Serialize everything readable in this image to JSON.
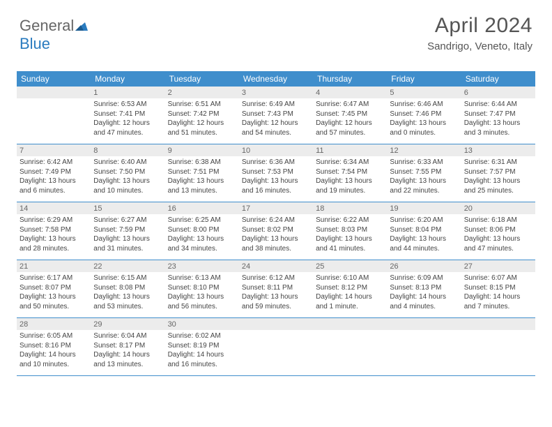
{
  "logo": {
    "part1": "General",
    "part2": "Blue"
  },
  "header": {
    "title": "April 2024",
    "location": "Sandrigo, Veneto, Italy"
  },
  "colors": {
    "header_blue": "#3f8ecc",
    "logo_blue": "#2a7bbf",
    "daynum_bg": "#ececec",
    "text": "#444444",
    "rule": "#3f8ecc"
  },
  "day_labels": [
    "Sunday",
    "Monday",
    "Tuesday",
    "Wednesday",
    "Thursday",
    "Friday",
    "Saturday"
  ],
  "weeks": [
    [
      null,
      {
        "n": "1",
        "sr": "Sunrise: 6:53 AM",
        "ss": "Sunset: 7:41 PM",
        "d1": "Daylight: 12 hours",
        "d2": "and 47 minutes."
      },
      {
        "n": "2",
        "sr": "Sunrise: 6:51 AM",
        "ss": "Sunset: 7:42 PM",
        "d1": "Daylight: 12 hours",
        "d2": "and 51 minutes."
      },
      {
        "n": "3",
        "sr": "Sunrise: 6:49 AM",
        "ss": "Sunset: 7:43 PM",
        "d1": "Daylight: 12 hours",
        "d2": "and 54 minutes."
      },
      {
        "n": "4",
        "sr": "Sunrise: 6:47 AM",
        "ss": "Sunset: 7:45 PM",
        "d1": "Daylight: 12 hours",
        "d2": "and 57 minutes."
      },
      {
        "n": "5",
        "sr": "Sunrise: 6:46 AM",
        "ss": "Sunset: 7:46 PM",
        "d1": "Daylight: 13 hours",
        "d2": "and 0 minutes."
      },
      {
        "n": "6",
        "sr": "Sunrise: 6:44 AM",
        "ss": "Sunset: 7:47 PM",
        "d1": "Daylight: 13 hours",
        "d2": "and 3 minutes."
      }
    ],
    [
      {
        "n": "7",
        "sr": "Sunrise: 6:42 AM",
        "ss": "Sunset: 7:49 PM",
        "d1": "Daylight: 13 hours",
        "d2": "and 6 minutes."
      },
      {
        "n": "8",
        "sr": "Sunrise: 6:40 AM",
        "ss": "Sunset: 7:50 PM",
        "d1": "Daylight: 13 hours",
        "d2": "and 10 minutes."
      },
      {
        "n": "9",
        "sr": "Sunrise: 6:38 AM",
        "ss": "Sunset: 7:51 PM",
        "d1": "Daylight: 13 hours",
        "d2": "and 13 minutes."
      },
      {
        "n": "10",
        "sr": "Sunrise: 6:36 AM",
        "ss": "Sunset: 7:53 PM",
        "d1": "Daylight: 13 hours",
        "d2": "and 16 minutes."
      },
      {
        "n": "11",
        "sr": "Sunrise: 6:34 AM",
        "ss": "Sunset: 7:54 PM",
        "d1": "Daylight: 13 hours",
        "d2": "and 19 minutes."
      },
      {
        "n": "12",
        "sr": "Sunrise: 6:33 AM",
        "ss": "Sunset: 7:55 PM",
        "d1": "Daylight: 13 hours",
        "d2": "and 22 minutes."
      },
      {
        "n": "13",
        "sr": "Sunrise: 6:31 AM",
        "ss": "Sunset: 7:57 PM",
        "d1": "Daylight: 13 hours",
        "d2": "and 25 minutes."
      }
    ],
    [
      {
        "n": "14",
        "sr": "Sunrise: 6:29 AM",
        "ss": "Sunset: 7:58 PM",
        "d1": "Daylight: 13 hours",
        "d2": "and 28 minutes."
      },
      {
        "n": "15",
        "sr": "Sunrise: 6:27 AM",
        "ss": "Sunset: 7:59 PM",
        "d1": "Daylight: 13 hours",
        "d2": "and 31 minutes."
      },
      {
        "n": "16",
        "sr": "Sunrise: 6:25 AM",
        "ss": "Sunset: 8:00 PM",
        "d1": "Daylight: 13 hours",
        "d2": "and 34 minutes."
      },
      {
        "n": "17",
        "sr": "Sunrise: 6:24 AM",
        "ss": "Sunset: 8:02 PM",
        "d1": "Daylight: 13 hours",
        "d2": "and 38 minutes."
      },
      {
        "n": "18",
        "sr": "Sunrise: 6:22 AM",
        "ss": "Sunset: 8:03 PM",
        "d1": "Daylight: 13 hours",
        "d2": "and 41 minutes."
      },
      {
        "n": "19",
        "sr": "Sunrise: 6:20 AM",
        "ss": "Sunset: 8:04 PM",
        "d1": "Daylight: 13 hours",
        "d2": "and 44 minutes."
      },
      {
        "n": "20",
        "sr": "Sunrise: 6:18 AM",
        "ss": "Sunset: 8:06 PM",
        "d1": "Daylight: 13 hours",
        "d2": "and 47 minutes."
      }
    ],
    [
      {
        "n": "21",
        "sr": "Sunrise: 6:17 AM",
        "ss": "Sunset: 8:07 PM",
        "d1": "Daylight: 13 hours",
        "d2": "and 50 minutes."
      },
      {
        "n": "22",
        "sr": "Sunrise: 6:15 AM",
        "ss": "Sunset: 8:08 PM",
        "d1": "Daylight: 13 hours",
        "d2": "and 53 minutes."
      },
      {
        "n": "23",
        "sr": "Sunrise: 6:13 AM",
        "ss": "Sunset: 8:10 PM",
        "d1": "Daylight: 13 hours",
        "d2": "and 56 minutes."
      },
      {
        "n": "24",
        "sr": "Sunrise: 6:12 AM",
        "ss": "Sunset: 8:11 PM",
        "d1": "Daylight: 13 hours",
        "d2": "and 59 minutes."
      },
      {
        "n": "25",
        "sr": "Sunrise: 6:10 AM",
        "ss": "Sunset: 8:12 PM",
        "d1": "Daylight: 14 hours",
        "d2": "and 1 minute."
      },
      {
        "n": "26",
        "sr": "Sunrise: 6:09 AM",
        "ss": "Sunset: 8:13 PM",
        "d1": "Daylight: 14 hours",
        "d2": "and 4 minutes."
      },
      {
        "n": "27",
        "sr": "Sunrise: 6:07 AM",
        "ss": "Sunset: 8:15 PM",
        "d1": "Daylight: 14 hours",
        "d2": "and 7 minutes."
      }
    ],
    [
      {
        "n": "28",
        "sr": "Sunrise: 6:05 AM",
        "ss": "Sunset: 8:16 PM",
        "d1": "Daylight: 14 hours",
        "d2": "and 10 minutes."
      },
      {
        "n": "29",
        "sr": "Sunrise: 6:04 AM",
        "ss": "Sunset: 8:17 PM",
        "d1": "Daylight: 14 hours",
        "d2": "and 13 minutes."
      },
      {
        "n": "30",
        "sr": "Sunrise: 6:02 AM",
        "ss": "Sunset: 8:19 PM",
        "d1": "Daylight: 14 hours",
        "d2": "and 16 minutes."
      },
      null,
      null,
      null,
      null
    ]
  ]
}
